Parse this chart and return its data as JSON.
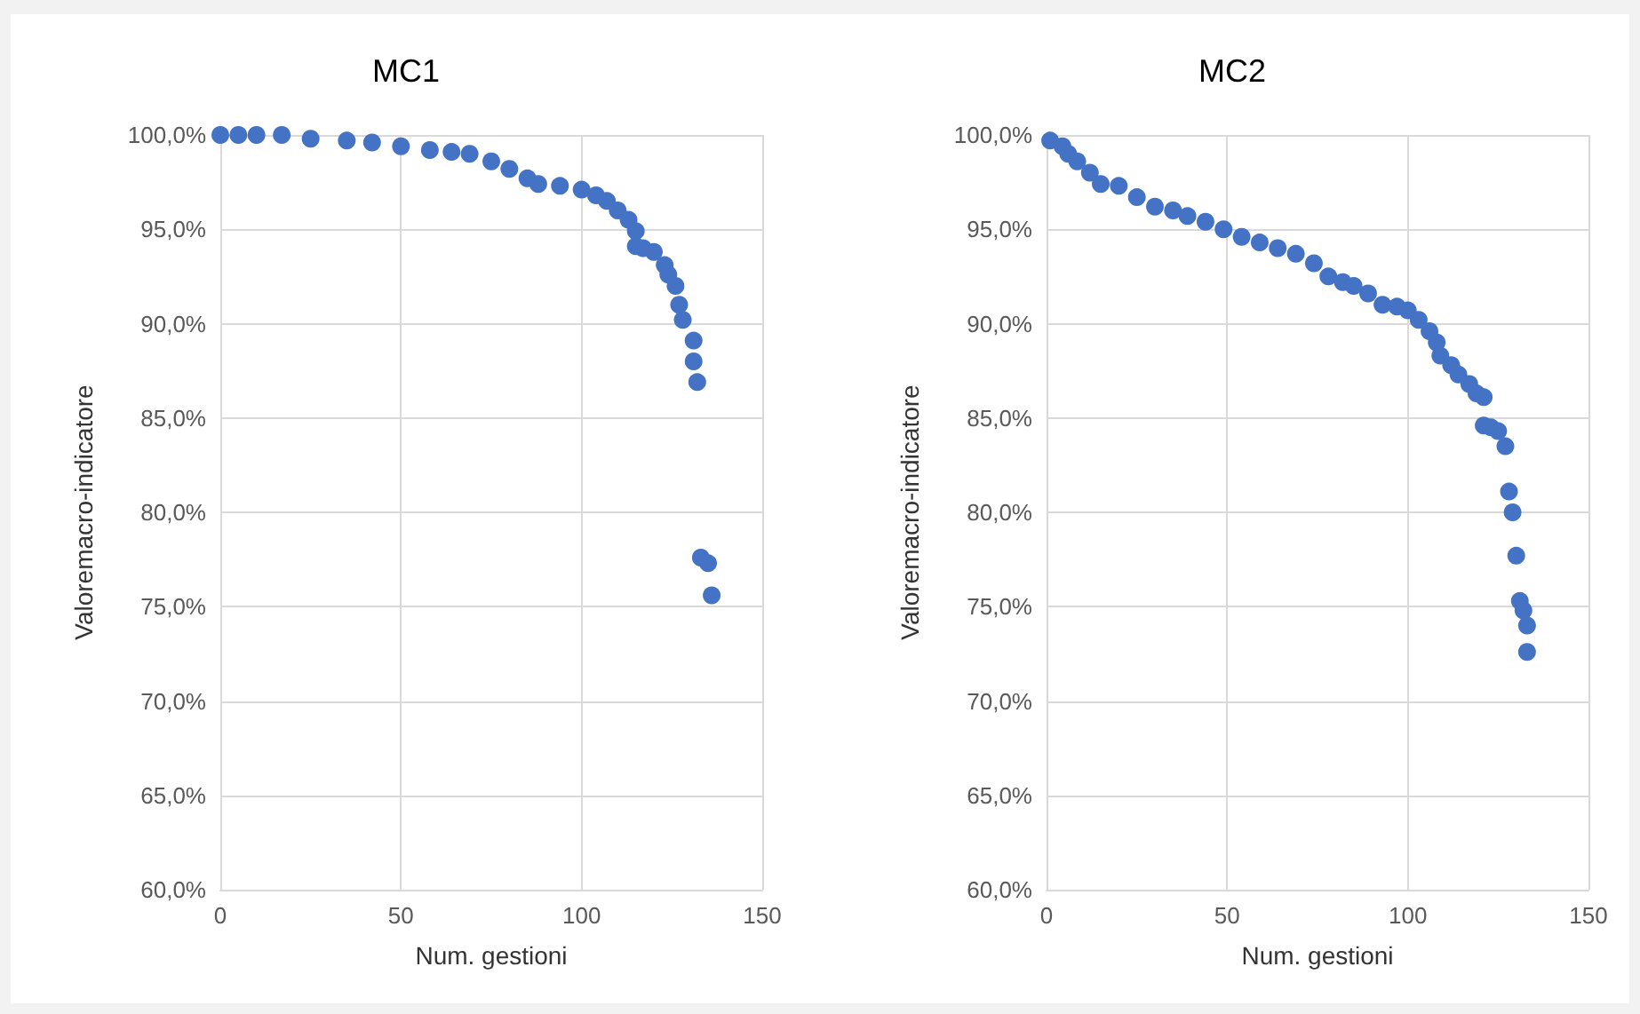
{
  "chart_data": [
    {
      "type": "scatter",
      "title": "MC1",
      "xlabel": "Num. gestioni",
      "ylabel": "Valoremacro-indicatore",
      "marker": "circle",
      "grid": true,
      "xlim": [
        0,
        150
      ],
      "xticks": [
        0,
        50,
        100,
        150
      ],
      "ylim": [
        60,
        100
      ],
      "yticks": [
        {
          "value": 60,
          "label": "60,0%"
        },
        {
          "value": 65,
          "label": "65,0%"
        },
        {
          "value": 70,
          "label": "70,0%"
        },
        {
          "value": 75,
          "label": "75,0%"
        },
        {
          "value": 80,
          "label": "80,0%"
        },
        {
          "value": 85,
          "label": "85,0%"
        },
        {
          "value": 90,
          "label": "90,0%"
        },
        {
          "value": 95,
          "label": "95,0%"
        },
        {
          "value": 100,
          "label": "100,0%"
        }
      ],
      "series": [
        {
          "color": "#4472c4",
          "x": [
            0,
            5,
            10,
            17,
            25,
            35,
            42,
            50,
            58,
            64,
            69,
            75,
            80,
            85,
            88,
            94,
            100,
            104,
            107,
            110,
            113,
            115,
            115,
            117,
            120,
            123,
            124,
            126,
            127,
            128,
            131,
            131,
            132,
            133,
            135,
            136
          ],
          "values": [
            100,
            100,
            100,
            100,
            99.8,
            99.7,
            99.6,
            99.4,
            99.2,
            99.1,
            99.0,
            98.6,
            98.2,
            97.7,
            97.4,
            97.3,
            97.1,
            96.8,
            96.5,
            96.0,
            95.5,
            94.9,
            94.1,
            94.0,
            93.8,
            93.1,
            92.6,
            92.0,
            91.0,
            90.2,
            89.1,
            88.0,
            86.9,
            77.6,
            77.3,
            75.6
          ]
        }
      ]
    },
    {
      "type": "scatter",
      "title": "MC2",
      "xlabel": "Num. gestioni",
      "ylabel": "Valoremacro-indicatore",
      "marker": "circle",
      "grid": true,
      "xlim": [
        0,
        150
      ],
      "xticks": [
        0,
        50,
        100,
        150
      ],
      "ylim": [
        60,
        100
      ],
      "yticks": [
        {
          "value": 60,
          "label": "60,0%"
        },
        {
          "value": 65,
          "label": "65,0%"
        },
        {
          "value": 70,
          "label": "70,0%"
        },
        {
          "value": 75,
          "label": "75,0%"
        },
        {
          "value": 80,
          "label": "80,0%"
        },
        {
          "value": 85,
          "label": "85,0%"
        },
        {
          "value": 90,
          "label": "90,0%"
        },
        {
          "value": 95,
          "label": "95,0%"
        },
        {
          "value": 100,
          "label": "100,0%"
        }
      ],
      "series": [
        {
          "color": "#4472c4",
          "x": [
            1,
            4.4,
            6,
            8.5,
            12,
            15,
            20,
            25,
            30,
            35,
            39,
            44,
            49,
            54,
            59,
            64,
            69,
            74,
            78,
            82,
            85,
            89,
            93,
            97,
            100,
            103,
            106,
            108,
            109,
            112,
            114,
            117,
            119,
            121,
            121,
            123,
            125,
            127,
            128,
            129,
            130,
            131,
            132,
            133,
            133
          ],
          "values": [
            99.7,
            99.4,
            99.0,
            98.6,
            98.0,
            97.4,
            97.3,
            96.7,
            96.2,
            96.0,
            95.7,
            95.4,
            95.0,
            94.6,
            94.3,
            94.0,
            93.7,
            93.2,
            92.5,
            92.2,
            92.0,
            91.6,
            91.0,
            90.9,
            90.7,
            90.2,
            89.6,
            89.0,
            88.3,
            87.8,
            87.3,
            86.8,
            86.3,
            86.1,
            84.6,
            84.5,
            84.3,
            83.5,
            81.1,
            80.0,
            77.7,
            75.3,
            74.8,
            74.0,
            72.6
          ]
        }
      ]
    }
  ]
}
